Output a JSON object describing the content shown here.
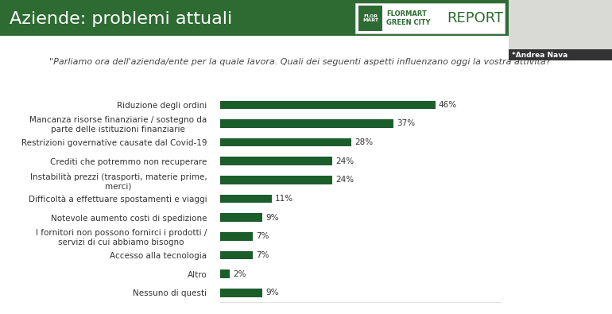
{
  "chart_data": {
    "type": "bar",
    "orientation": "horizontal",
    "title": "Aziende: problemi attuali",
    "subtitle": "\"Parliamo ora dell'azienda/ente per la quale lavora. Quali dei seguenti aspetti influenzano oggi la vostra attività?\"",
    "annotations": [
      "FLOR MART",
      "FLORMART GREEN CITY",
      "REPORT",
      "*Andrea Nava"
    ],
    "categories": [
      "Riduzione degli ordini",
      "Mancanza risorse finanziarie / sostegno da\nparte delle istituzioni finanziarie",
      "Restrizioni governative causate dal Covid-19",
      "Crediti che potremmo non recuperare",
      "Instabilità prezzi (trasporti, materie prime,\nmerci)",
      "Difficoltà a effettuare spostamenti e viaggi",
      "Notevole aumento costi di spedizione",
      "I fornitori non possono fornirci i prodotti /\nservizi di cui abbiamo bisogno",
      "Accesso alla tecnologia",
      "Altro",
      "Nessuno di questi"
    ],
    "values": [
      46,
      37,
      28,
      24,
      24,
      11,
      9,
      7,
      7,
      2,
      9
    ],
    "value_labels": [
      "46%",
      "37%",
      "28%",
      "24%",
      "24%",
      "11%",
      "9%",
      "7%",
      "7%",
      "2%",
      "9%"
    ],
    "color": "#1b5e2b",
    "xlim": [
      0,
      60
    ],
    "data_labels": true,
    "tick_labels": "y",
    "grid": false
  }
}
